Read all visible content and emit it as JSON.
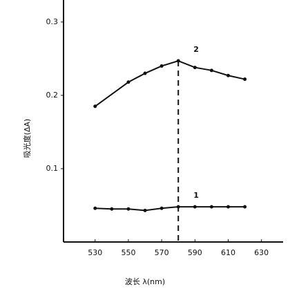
{
  "chart_data": {
    "type": "line",
    "xlabel": "波长 λ(nm)",
    "ylabel": "吸光度(ΔA)",
    "x": [
      530,
      540,
      550,
      560,
      570,
      580,
      590,
      600,
      610,
      620
    ],
    "series": [
      {
        "name": "1",
        "color": "#111111",
        "values": [
          0.046,
          0.045,
          0.045,
          0.043,
          0.046,
          0.048,
          0.048,
          0.048,
          0.048,
          0.048
        ]
      },
      {
        "name": "2",
        "color": "#111111",
        "values": [
          0.185,
          null,
          0.218,
          0.23,
          0.24,
          0.247,
          0.238,
          0.234,
          0.227,
          0.222
        ]
      }
    ],
    "vline": 580,
    "xlim": [
      511,
      643
    ],
    "xticks": [
      530,
      550,
      570,
      590,
      610,
      630
    ],
    "ylim": [
      0,
      0.33
    ],
    "yticks": [
      0.1,
      0.2,
      0.3
    ]
  }
}
